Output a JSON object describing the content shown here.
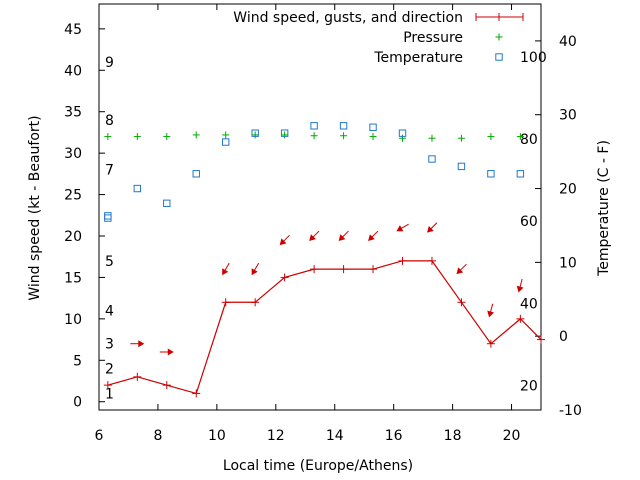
{
  "chart_data": {
    "type": "line",
    "xlabel": "Local time (Europe/Athens)",
    "ylabel_left": "Wind speed (kt - Beaufort)",
    "ylabel_right": "Temperature (C - F)",
    "xlim": [
      6,
      21
    ],
    "ylim_left": [
      -1,
      48
    ],
    "ylim_right": [
      -10,
      45
    ],
    "x_ticks": [
      "6",
      "8",
      "10",
      "12",
      "14",
      "16",
      "18",
      "20"
    ],
    "y_ticks_left": [
      "0",
      "5",
      "10",
      "15",
      "20",
      "25",
      "30",
      "35",
      "40",
      "45"
    ],
    "y_ticks_right": [
      "-10",
      "0",
      "10",
      "20",
      "30",
      "40"
    ],
    "beaufort_labels": [
      {
        "label": "1",
        "y": 1
      },
      {
        "label": "2",
        "y": 4
      },
      {
        "label": "3",
        "y": 7
      },
      {
        "label": "4",
        "y": 11
      },
      {
        "label": "5",
        "y": 17
      },
      {
        "label": "7",
        "y": 28
      },
      {
        "label": "8",
        "y": 34
      },
      {
        "label": "9",
        "y": 41
      }
    ],
    "fahrenheit_labels": [
      {
        "label": "20",
        "t": -6.7
      },
      {
        "label": "40",
        "t": 4.4
      },
      {
        "label": "60",
        "t": 15.6
      },
      {
        "label": "80",
        "t": 26.7
      },
      {
        "label": "100",
        "t": 37.8
      }
    ],
    "series": [
      {
        "name": "Wind speed, gusts, and direction",
        "color": "#cc0000",
        "x": [
          6.3,
          7.3,
          8.3,
          9.3,
          10.3,
          11.3,
          12.3,
          13.3,
          14.3,
          15.3,
          16.3,
          17.3,
          18.3,
          19.3,
          20.3,
          21.0
        ],
        "y": [
          2,
          3,
          2,
          1,
          12,
          12,
          15,
          16,
          16,
          16,
          17,
          17,
          12,
          7,
          10,
          7.5
        ],
        "direction_x": [
          7.3,
          8.3,
          10.3,
          11.3,
          12.3,
          13.3,
          14.3,
          15.3,
          16.3,
          17.3,
          18.3,
          19.3,
          20.3
        ],
        "direction_y": [
          7,
          6,
          16,
          16,
          19.5,
          20,
          20,
          20,
          21,
          21,
          16,
          11,
          14
        ],
        "direction_deg": [
          270,
          270,
          30,
          30,
          45,
          45,
          45,
          45,
          60,
          45,
          45,
          15,
          15
        ]
      },
      {
        "name": "Pressure",
        "color": "#00aa00",
        "x": [
          6.3,
          7.3,
          8.3,
          9.3,
          10.3,
          11.3,
          12.3,
          13.3,
          14.3,
          15.3,
          16.3,
          17.3,
          18.3,
          19.3,
          20.3
        ],
        "y": [
          32,
          32,
          32,
          32.2,
          32.2,
          32.2,
          32.2,
          32.1,
          32.1,
          32,
          31.8,
          31.8,
          31.8,
          32,
          32
        ]
      },
      {
        "name": "Temperature",
        "color": "#2277cc",
        "x": [
          6.3,
          6.3,
          7.3,
          8.3,
          9.3,
          10.3,
          11.3,
          12.3,
          13.3,
          14.3,
          15.3,
          16.3,
          17.3,
          18.3,
          19.3,
          20.3
        ],
        "t": [
          16,
          16.3,
          20,
          18,
          22,
          26.3,
          27.5,
          27.5,
          28.5,
          28.5,
          28.3,
          27.5,
          24,
          23,
          22,
          22
        ]
      }
    ],
    "legend_position": "top-right",
    "grid": false
  }
}
